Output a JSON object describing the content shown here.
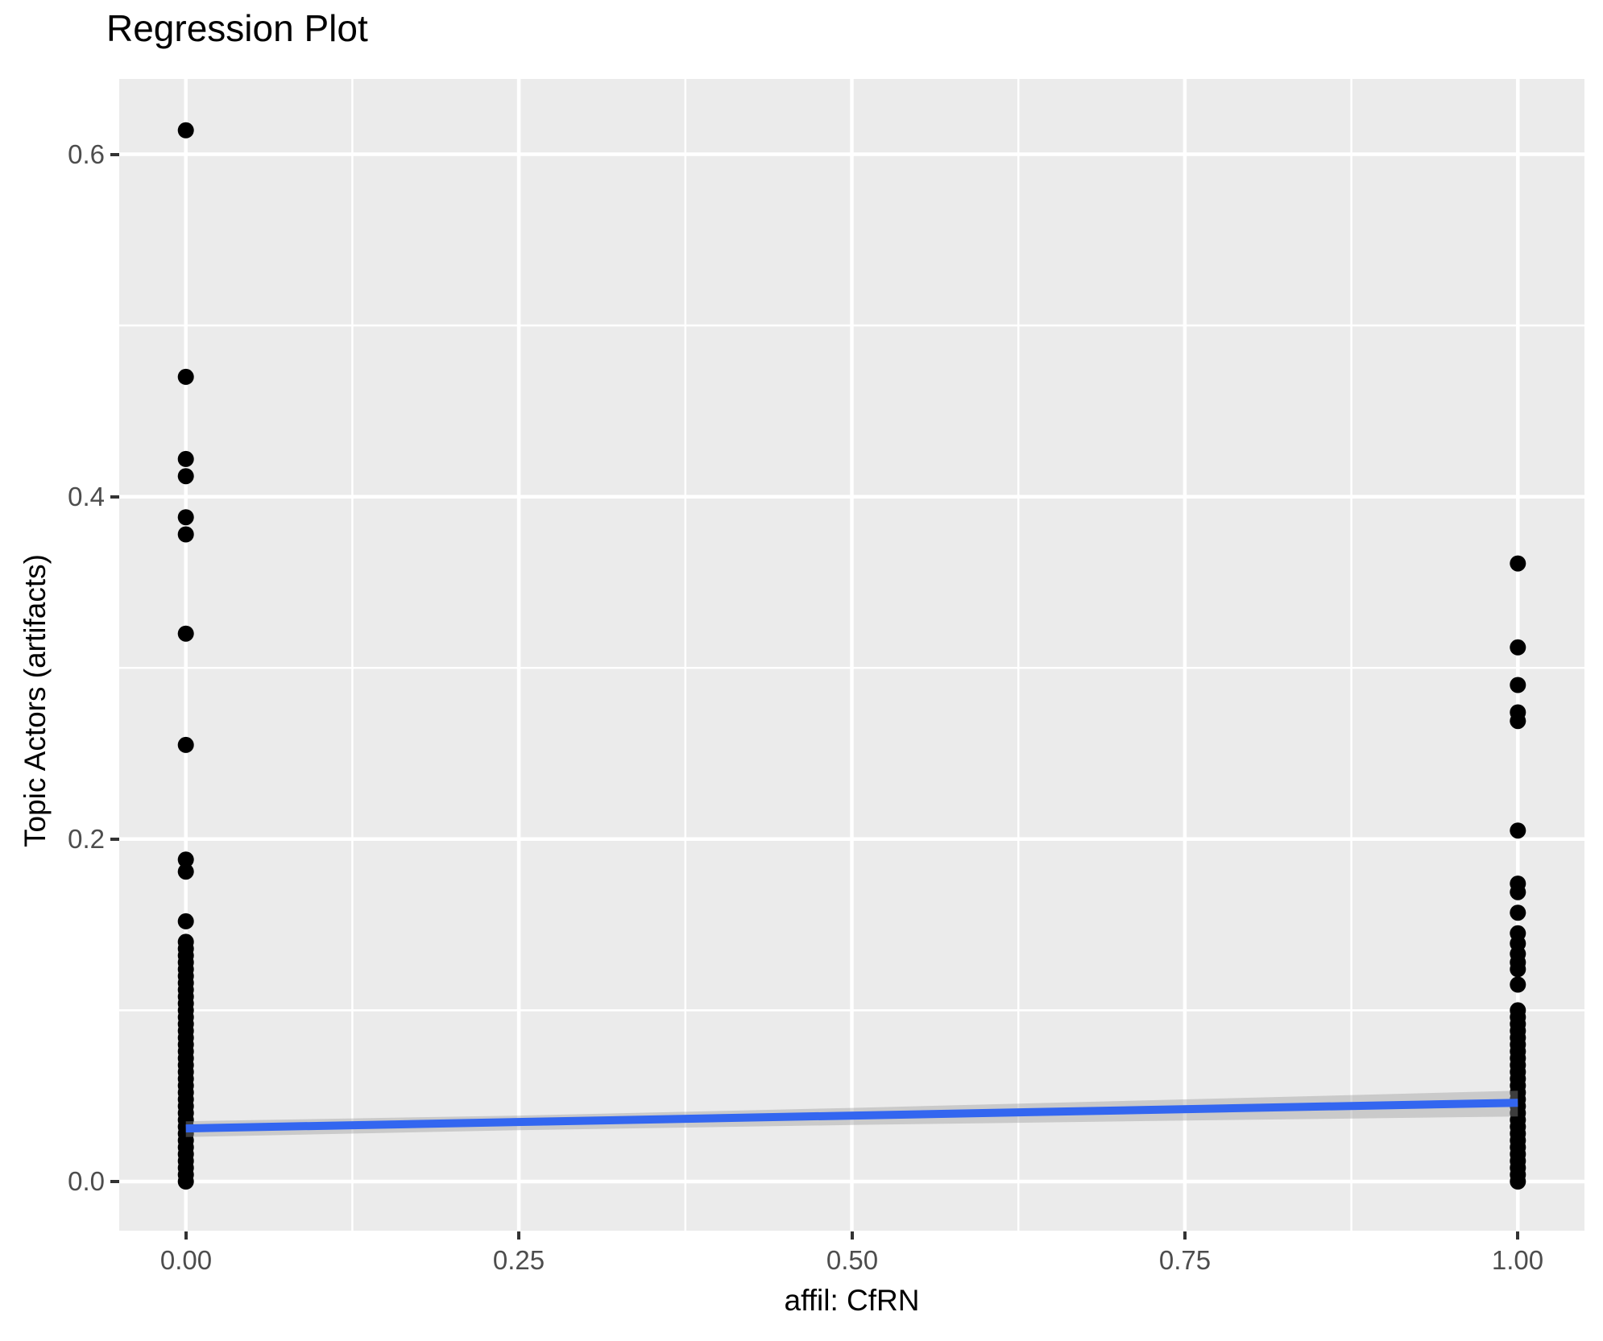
{
  "figure": {
    "title": "Regression Plot",
    "x_axis_title": "affil: CfRN",
    "y_axis_title": "Topic Actors (artifacts)"
  },
  "chart_data": {
    "type": "scatter",
    "subtype": "regression-plot-with-confidence-band",
    "title": "Regression Plot",
    "xlabel": "affil: CfRN",
    "ylabel": "Topic Actors (artifacts)",
    "xlim": [
      -0.05,
      1.05
    ],
    "ylim": [
      -0.0287,
      0.644
    ],
    "grid": "on",
    "legend": "none",
    "x_ticks": {
      "values": [
        0,
        0.25,
        0.5,
        0.75,
        1
      ],
      "labels": [
        "0.00",
        "0.25",
        "0.50",
        "0.75",
        "1.00"
      ]
    },
    "y_ticks": {
      "values": [
        0,
        0.2,
        0.4,
        0.6
      ],
      "labels": [
        "0.0",
        "0.2",
        "0.4",
        "0.6"
      ]
    },
    "x_minor": [
      0.125,
      0.375,
      0.625,
      0.875
    ],
    "y_minor": [
      0.1,
      0.3,
      0.5
    ],
    "series": [
      {
        "name": "affil: CfRN = 0",
        "x": 0,
        "y": [
          0.614,
          0.47,
          0.422,
          0.412,
          0.388,
          0.378,
          0.32,
          0.255,
          0.188,
          0.181,
          0.152,
          0.14,
          0.136,
          0.132,
          0.128,
          0.124,
          0.12,
          0.116,
          0.112,
          0.108,
          0.104,
          0.1,
          0.096,
          0.092,
          0.088,
          0.084,
          0.08,
          0.076,
          0.072,
          0.068,
          0.064,
          0.06,
          0.056,
          0.052,
          0.048,
          0.044,
          0.04,
          0.036,
          0.032,
          0.028,
          0.024,
          0.02,
          0.016,
          0.012,
          0.008,
          0.004,
          0.0
        ]
      },
      {
        "name": "affil: CfRN = 1",
        "x": 1,
        "y": [
          0.361,
          0.312,
          0.29,
          0.274,
          0.269,
          0.205,
          0.174,
          0.169,
          0.157,
          0.145,
          0.139,
          0.133,
          0.128,
          0.124,
          0.115,
          0.1,
          0.096,
          0.092,
          0.088,
          0.084,
          0.08,
          0.076,
          0.072,
          0.068,
          0.064,
          0.06,
          0.056,
          0.052,
          0.048,
          0.044,
          0.04,
          0.036,
          0.032,
          0.028,
          0.024,
          0.02,
          0.016,
          0.012,
          0.008,
          0.004,
          0.0
        ]
      }
    ],
    "regression_line": {
      "x": [
        0,
        1
      ],
      "y": [
        0.031,
        0.046
      ]
    },
    "confidence_band": {
      "x": [
        0,
        0.25,
        0.5,
        0.75,
        1
      ],
      "low": [
        0.026,
        0.03,
        0.033,
        0.0356,
        0.038
      ],
      "high": [
        0.0352,
        0.0385,
        0.043,
        0.048,
        0.053
      ]
    },
    "colors": {
      "point": "#000000",
      "line": "#3366F0",
      "band": "#999999",
      "band_opacity": 0.4,
      "panel": "#EBEBEB",
      "grid": "#FFFFFF",
      "tick_text": "#4D4D4D",
      "tick_mark": "#333333",
      "title_text": "#000000"
    }
  }
}
